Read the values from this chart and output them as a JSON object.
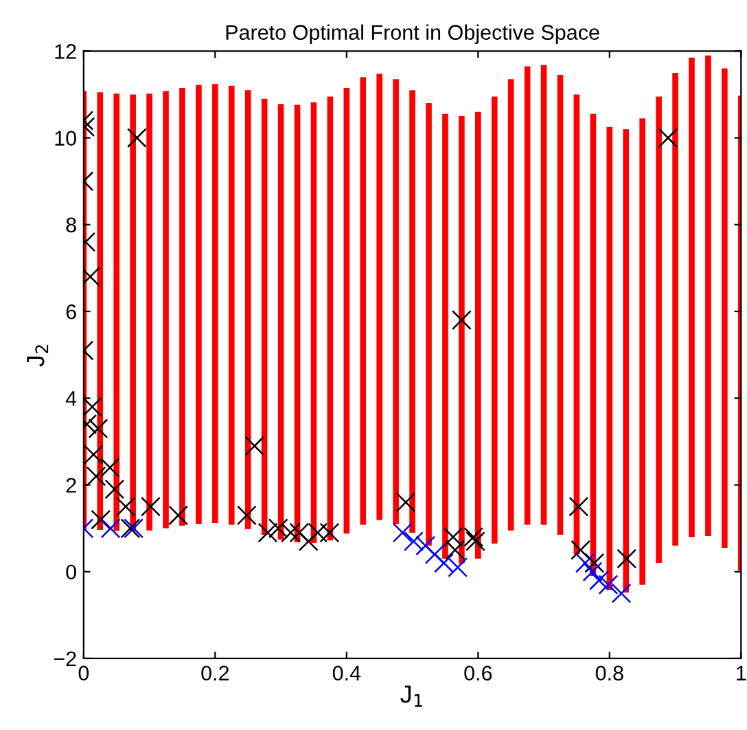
{
  "chart_data": {
    "type": "scatter",
    "title": "Pareto Optimal Front in Objective Space",
    "xlabel": "J$_{1}$",
    "ylabel": "J$_{2}$",
    "xlim": [
      0,
      1
    ],
    "ylim": [
      -2,
      12
    ],
    "xticks": [
      0,
      0.2,
      0.4,
      0.6,
      0.8,
      1
    ],
    "yticks": [
      -2,
      0,
      2,
      4,
      6,
      8,
      10,
      12
    ],
    "grid": false,
    "legend": false,
    "series": [
      {
        "type": "bar",
        "color": "#ff0000",
        "x": [
          0,
          0.025,
          0.05,
          0.075,
          0.1,
          0.125,
          0.15,
          0.175,
          0.2,
          0.225,
          0.25,
          0.275,
          0.3,
          0.325,
          0.35,
          0.375,
          0.4,
          0.425,
          0.45,
          0.475,
          0.5,
          0.525,
          0.55,
          0.575,
          0.6,
          0.625,
          0.65,
          0.675,
          0.7,
          0.725,
          0.75,
          0.775,
          0.8,
          0.825,
          0.85,
          0.875,
          0.9,
          0.925,
          0.95,
          0.975,
          1.0
        ],
        "base": [
          0.98,
          0.96,
          0.94,
          0.93,
          0.95,
          1.0,
          1.06,
          1.1,
          1.12,
          1.08,
          0.98,
          0.85,
          0.74,
          0.68,
          0.66,
          0.72,
          0.88,
          1.08,
          1.19,
          1.1,
          0.9,
          0.6,
          0.3,
          0.19,
          0.3,
          0.65,
          0.95,
          1.08,
          1.08,
          0.85,
          0.4,
          -0.1,
          -0.42,
          -0.48,
          -0.3,
          0.2,
          0.6,
          0.8,
          0.82,
          0.55,
          0.03
        ],
        "values": [
          10.1,
          10.09,
          10.08,
          10.07,
          10.07,
          10.08,
          10.09,
          10.12,
          10.12,
          10.12,
          10.12,
          10.05,
          10.04,
          10.08,
          10.16,
          10.23,
          10.27,
          10.32,
          10.29,
          10.25,
          10.2,
          10.2,
          10.25,
          10.31,
          10.3,
          10.3,
          10.4,
          10.57,
          10.6,
          10.6,
          10.6,
          10.65,
          10.67,
          10.68,
          10.75,
          10.75,
          10.9,
          11.05,
          11.08,
          11.05,
          10.94
        ]
      },
      {
        "marker": "cross",
        "color": "#000000",
        "x": [
          0.0,
          0.002,
          0.081,
          0.0,
          0.003,
          0.01,
          0.0,
          0.013,
          0.005,
          0.022,
          0.015,
          0.04,
          0.019,
          0.047,
          0.064,
          0.026,
          0.071,
          0.102,
          0.144,
          0.26,
          0.248,
          0.28,
          0.296,
          0.315,
          0.328,
          0.342,
          0.356,
          0.374,
          0.889,
          0.575,
          0.49,
          0.562,
          0.593,
          0.565,
          0.596,
          0.753,
          0.756,
          0.777,
          0.826
        ],
        "values": [
          10.4,
          10.25,
          10.0,
          9.0,
          7.6,
          6.8,
          5.1,
          3.8,
          3.4,
          3.3,
          2.7,
          2.4,
          2.2,
          1.9,
          1.5,
          1.2,
          1.0,
          1.5,
          1.3,
          2.9,
          1.3,
          0.9,
          1.0,
          0.9,
          0.9,
          0.7,
          0.9,
          0.9,
          10.0,
          5.8,
          1.6,
          0.8,
          0.8,
          0.5,
          0.7,
          1.5,
          0.5,
          0.2,
          0.3
        ]
      },
      {
        "marker": "cross",
        "color": "#0000ff",
        "x": [
          0.0,
          0.041,
          0.076,
          0.485,
          0.502,
          0.52,
          0.534,
          0.548,
          0.569,
          0.763,
          0.774,
          0.784,
          0.798,
          0.818
        ],
        "values": [
          1.0,
          1.0,
          1.0,
          0.9,
          0.7,
          0.6,
          0.4,
          0.2,
          0.1,
          0.2,
          0.0,
          -0.2,
          -0.3,
          -0.5
        ]
      }
    ]
  }
}
